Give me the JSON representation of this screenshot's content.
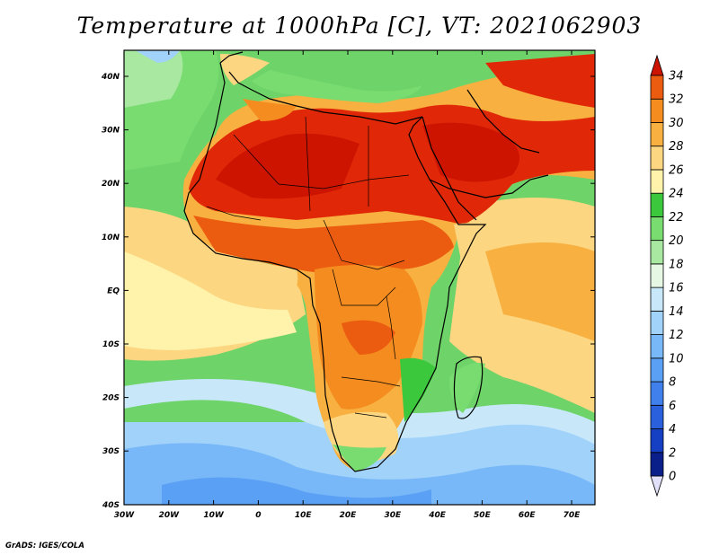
{
  "title": "Temperature at 1000hPa [C], VT: 2021062903",
  "credit": "GrADS: IGES/COLA",
  "lon_ticks": [
    "30W",
    "20W",
    "10W",
    "0",
    "10E",
    "20E",
    "30E",
    "40E",
    "50E",
    "60E",
    "70E"
  ],
  "lat_ticks": [
    "40N",
    "30N",
    "20N",
    "10N",
    "EQ",
    "10S",
    "20S",
    "30S",
    "40S"
  ],
  "colorbar": {
    "levels": [
      "0",
      "2",
      "4",
      "6",
      "8",
      "10",
      "12",
      "14",
      "16",
      "18",
      "20",
      "22",
      "24",
      "26",
      "28",
      "30",
      "32",
      "34"
    ],
    "colors": [
      "#0a1f8a",
      "#1640c4",
      "#2a60dc",
      "#3f80ec",
      "#5aa0f4",
      "#78b8f8",
      "#a0d2fa",
      "#c8e8fa",
      "#e6f8e4",
      "#a8e8a0",
      "#78dc70",
      "#3cc83c",
      "#fff2aa",
      "#fcd680",
      "#f8b040",
      "#f48c20",
      "#ec5c10",
      "#e02808",
      "#cc1400"
    ]
  }
}
